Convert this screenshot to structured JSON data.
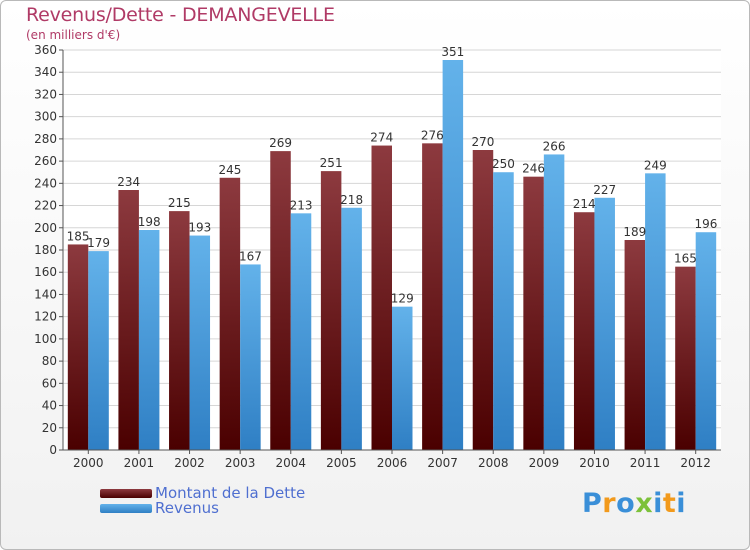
{
  "title": "Revenus/Dette - DEMANGEVELLE",
  "subtitle": "(en milliers d'€)",
  "legend": {
    "debt_label": "Montant de la Dette",
    "revenue_label": "Revenus"
  },
  "logo": {
    "text": "Proxiti",
    "letters": [
      "P",
      "r",
      "o",
      "x",
      "i",
      "t",
      "i"
    ],
    "colors": [
      "#3a8fd8",
      "#f29a1c",
      "#3a8fd8",
      "#7cc13a",
      "#3a8fd8",
      "#f29a1c",
      "#3a8fd8"
    ]
  },
  "colors": {
    "debt_top": "#8d3a3f",
    "debt_bottom": "#4a0000",
    "revenue_top": "#63b2ea",
    "revenue_bottom": "#2f7fc4",
    "title": "#b03a66",
    "legend_text": "#4f6fd0"
  },
  "chart_data": {
    "type": "bar",
    "title": "Revenus/Dette - DEMANGEVELLE",
    "subtitle": "(en milliers d'€)",
    "categories": [
      "2000",
      "2001",
      "2002",
      "2003",
      "2004",
      "2005",
      "2006",
      "2007",
      "2008",
      "2009",
      "2010",
      "2011",
      "2012"
    ],
    "series": [
      {
        "name": "Montant de la Dette",
        "values": [
          185,
          234,
          215,
          245,
          269,
          251,
          274,
          276,
          270,
          246,
          214,
          189,
          165
        ]
      },
      {
        "name": "Revenus",
        "values": [
          179,
          198,
          193,
          167,
          213,
          218,
          129,
          351,
          250,
          266,
          227,
          249,
          196
        ]
      }
    ],
    "ylim": [
      0,
      360
    ],
    "yticks": [
      0,
      20,
      40,
      60,
      80,
      100,
      120,
      140,
      160,
      180,
      200,
      220,
      240,
      260,
      280,
      300,
      320,
      340,
      360
    ],
    "grid": true,
    "legend_position": "bottom-left"
  }
}
